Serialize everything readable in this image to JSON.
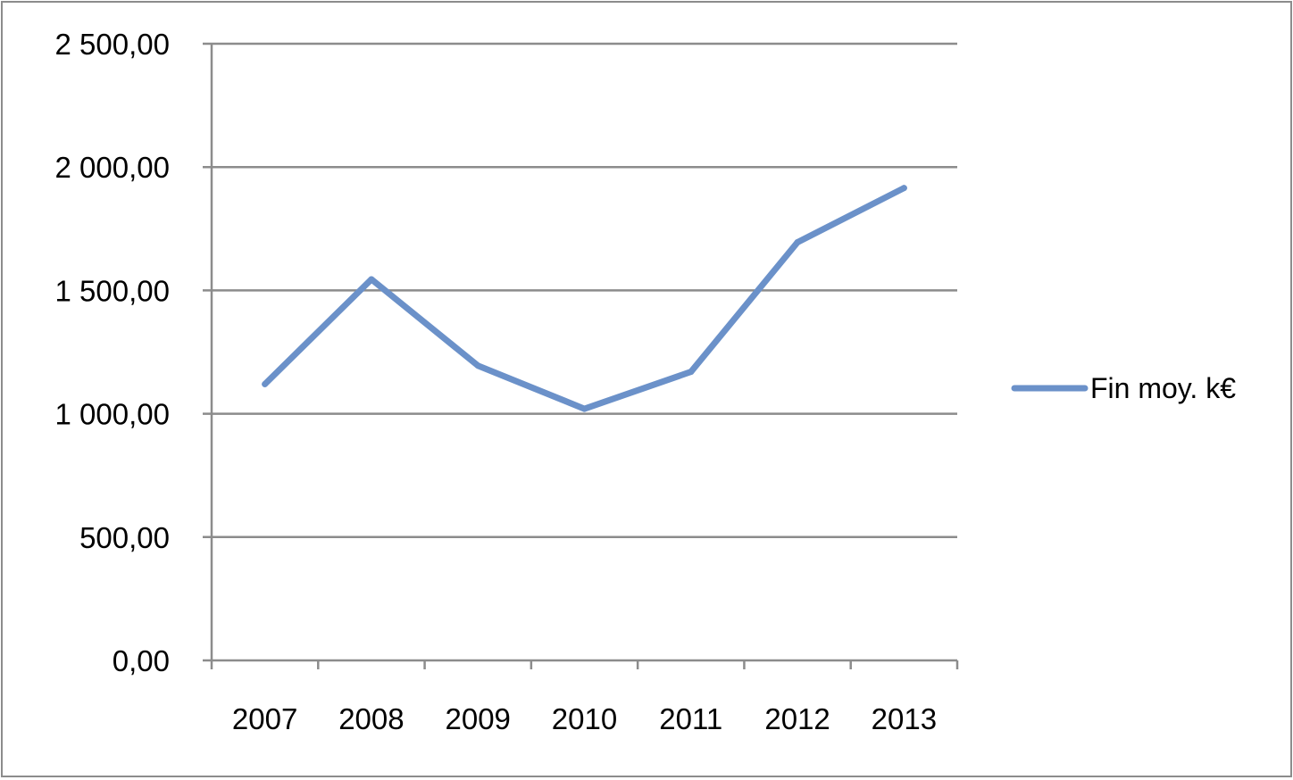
{
  "chart_data": {
    "type": "line",
    "categories": [
      "2007",
      "2008",
      "2009",
      "2010",
      "2011",
      "2012",
      "2013"
    ],
    "series": [
      {
        "name": "Fin moy. k€",
        "values": [
          1120,
          1545,
          1195,
          1020,
          1170,
          1695,
          1915
        ],
        "color": "#6b91c9"
      }
    ],
    "ylim": [
      0,
      2500
    ],
    "yticks": [
      0,
      500,
      1000,
      1500,
      2000,
      2500
    ],
    "ytick_labels": [
      "0,00",
      "500,00",
      "1 000,00",
      "1 500,00",
      "2 000,00",
      "2 500,00"
    ],
    "grid": true,
    "legend_position": "right",
    "colors": {
      "gridline": "#8c8c8c",
      "axis": "#8c8c8c",
      "border": "#8c8c8c"
    }
  }
}
